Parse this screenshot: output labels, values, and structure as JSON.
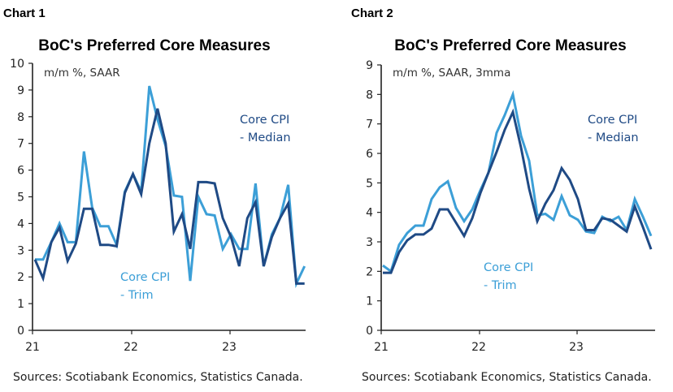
{
  "chart_data": [
    {
      "type": "line",
      "panel_label": "Chart 1",
      "title": "BoC's Preferred Core Measures",
      "subtitle": "m/m %, SAAR",
      "x_tick_labels": [
        "21",
        "22",
        "23"
      ],
      "x_start": "2021-01",
      "x_frequency": "monthly",
      "ylim": [
        0,
        10
      ],
      "y_ticks": [
        0,
        1,
        2,
        3,
        4,
        5,
        6,
        7,
        8,
        9,
        10
      ],
      "grid": false,
      "series": [
        {
          "name": "Core CPI - Trim",
          "label_lines": [
            "Core CPI",
            "- Trim"
          ],
          "color": "#3c9fd7",
          "values": [
            2.65,
            2.65,
            3.3,
            4.0,
            3.3,
            3.3,
            6.7,
            4.6,
            3.9,
            3.9,
            3.2,
            5.2,
            5.85,
            5.2,
            9.15,
            7.9,
            6.9,
            5.05,
            5.0,
            1.85,
            5.0,
            4.35,
            4.3,
            3.05,
            3.6,
            3.05,
            3.05,
            5.5,
            2.4,
            3.6,
            4.2,
            5.45,
            1.75,
            2.4
          ]
        },
        {
          "name": "Core CPI - Median",
          "label_lines": [
            "Core CPI",
            "- Median"
          ],
          "color": "#1f4a85",
          "values": [
            2.65,
            1.95,
            3.3,
            3.85,
            2.6,
            3.25,
            4.55,
            4.55,
            3.2,
            3.2,
            3.15,
            5.15,
            5.85,
            5.1,
            7.0,
            8.3,
            7.0,
            3.7,
            4.35,
            3.05,
            5.55,
            5.55,
            5.5,
            4.2,
            3.5,
            2.4,
            4.2,
            4.8,
            2.4,
            3.5,
            4.2,
            4.75,
            1.75,
            1.75
          ]
        }
      ],
      "source": "Sources: Scotiabank Economics, Statistics Canada."
    },
    {
      "type": "line",
      "panel_label": "Chart 2",
      "title": "BoC's Preferred Core Measures",
      "subtitle": "m/m %, SAAR, 3mma",
      "x_tick_labels": [
        "21",
        "22",
        "23"
      ],
      "x_start": "2021-01",
      "x_frequency": "monthly",
      "ylim": [
        0,
        9
      ],
      "y_ticks": [
        0,
        1,
        2,
        3,
        4,
        5,
        6,
        7,
        8,
        9
      ],
      "grid": false,
      "series": [
        {
          "name": "Core CPI - Trim",
          "label_lines": [
            "Core CPI",
            "- Trim"
          ],
          "color": "#3c9fd7",
          "values": [
            2.2,
            2.0,
            2.9,
            3.3,
            3.55,
            3.55,
            4.45,
            4.85,
            5.05,
            4.15,
            3.7,
            4.1,
            4.75,
            5.35,
            6.7,
            7.3,
            8.0,
            6.6,
            5.75,
            3.9,
            3.95,
            3.75,
            4.55,
            3.9,
            3.75,
            3.35,
            3.3,
            3.85,
            3.7,
            3.85,
            3.4,
            4.45,
            3.85,
            3.2
          ]
        },
        {
          "name": "Core CPI - Median",
          "label_lines": [
            "Core CPI",
            "- Median"
          ],
          "color": "#1f4a85",
          "values": [
            1.95,
            1.95,
            2.65,
            3.05,
            3.25,
            3.25,
            3.45,
            4.1,
            4.1,
            3.65,
            3.2,
            3.8,
            4.65,
            5.35,
            6.05,
            6.8,
            7.4,
            6.2,
            4.8,
            3.7,
            4.3,
            4.75,
            5.5,
            5.1,
            4.45,
            3.4,
            3.4,
            3.8,
            3.75,
            3.55,
            3.35,
            4.2,
            3.5,
            2.75
          ]
        }
      ],
      "source": "Sources: Scotiabank Economics, Statistics Canada."
    }
  ]
}
